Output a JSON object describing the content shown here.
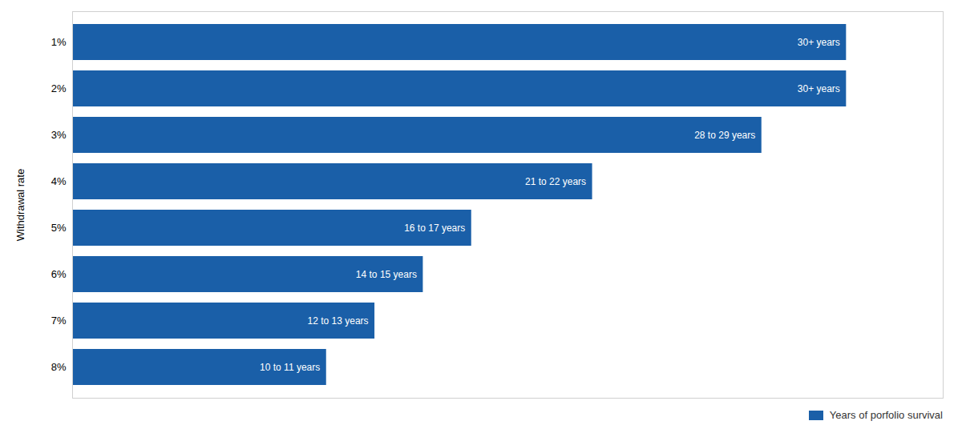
{
  "chart_data": {
    "type": "bar",
    "orientation": "horizontal",
    "ylabel": "Withdrawal rate",
    "categories": [
      "1%",
      "2%",
      "3%",
      "4%",
      "5%",
      "6%",
      "7%",
      "8%"
    ],
    "series": [
      {
        "name": "Years of porfolio survival",
        "color": "#1a5fa8",
        "values": [
          32,
          32,
          28.5,
          21.5,
          16.5,
          14.5,
          12.5,
          10.5
        ],
        "value_labels": [
          "30+ years",
          "30+ years",
          "28 to 29 years",
          "21 to 22 years",
          "16 to 17 years",
          "14 to 15 years",
          "12 to 13 years",
          "10 to 11 years"
        ]
      }
    ],
    "xlim": [
      0,
      36
    ],
    "tick_labels": "y",
    "legend": "lower right"
  }
}
